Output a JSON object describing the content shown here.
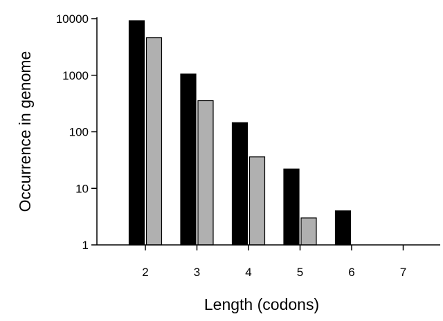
{
  "chart_data": {
    "type": "bar",
    "title": "",
    "xlabel": "Length (codons)",
    "ylabel": "Occurrence in genome",
    "y_scale": "log",
    "ylim": [
      1,
      10000
    ],
    "y_ticks": [
      "1",
      "10",
      "100",
      "1000",
      "10000"
    ],
    "categories": [
      "2",
      "3",
      "4",
      "5",
      "6",
      "7"
    ],
    "series": [
      {
        "color": "#000000",
        "values": [
          9200,
          1050,
          145,
          22,
          4,
          null
        ]
      },
      {
        "color": "#b0b0b0",
        "values": [
          4600,
          355,
          36,
          3,
          null,
          null
        ]
      }
    ],
    "grid": false,
    "legend": "none"
  }
}
